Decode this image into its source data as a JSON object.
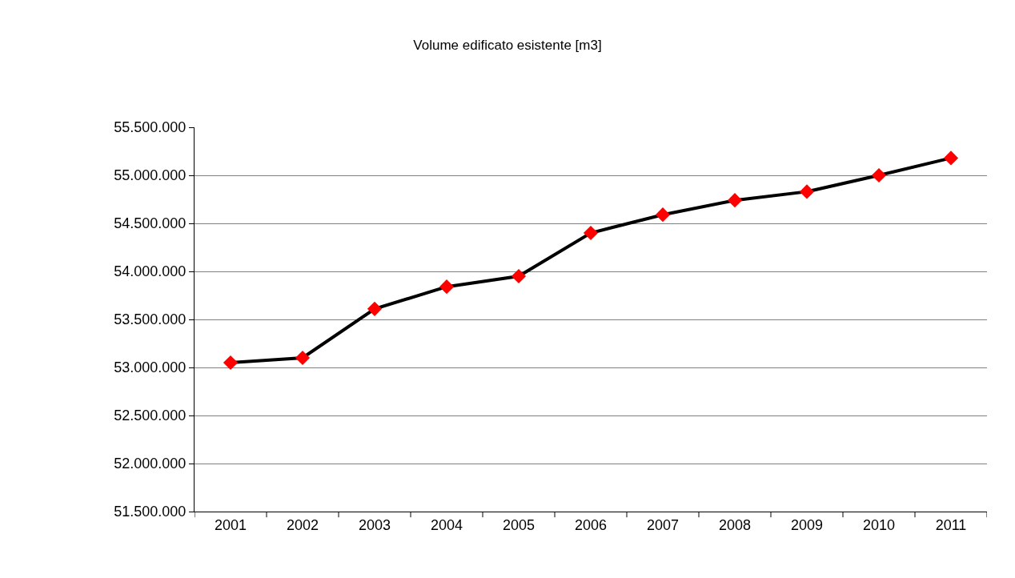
{
  "chart_data": {
    "type": "line",
    "title": "Volume edificato esistente [m3]",
    "categories": [
      "2001",
      "2002",
      "2003",
      "2004",
      "2005",
      "2006",
      "2007",
      "2008",
      "2009",
      "2010",
      "2011"
    ],
    "series": [
      {
        "color": "#000000",
        "colors": [
          "#ff0000",
          "#ff0000",
          "#ff0000",
          "#ff0000",
          "#ff0000",
          "#ff0000",
          "#ff0000",
          "#ff0000",
          "#ff0000",
          "#ff0000",
          "#ff0000"
        ],
        "values": [
          53050000,
          53100000,
          53610000,
          53840000,
          53950000,
          54400000,
          54590000,
          54740000,
          54830000,
          55000000,
          55180000
        ]
      }
    ],
    "ylim": [
      51500000,
      55500000
    ],
    "yticks": [
      {
        "value": 51500000,
        "label": "51.500.000"
      },
      {
        "value": 52000000,
        "label": "52.000.000"
      },
      {
        "value": 52500000,
        "label": "52.500.000"
      },
      {
        "value": 53000000,
        "label": "53.000.000"
      },
      {
        "value": 53500000,
        "label": "53.500.000"
      },
      {
        "value": 54000000,
        "label": "54.000.000"
      },
      {
        "value": 54500000,
        "label": "54.500.000"
      },
      {
        "value": 55000000,
        "label": "55.000.000"
      },
      {
        "value": 55500000,
        "label": "55.500.000"
      }
    ],
    "grid": "y",
    "marker": "diamond",
    "line_style": "solid"
  }
}
